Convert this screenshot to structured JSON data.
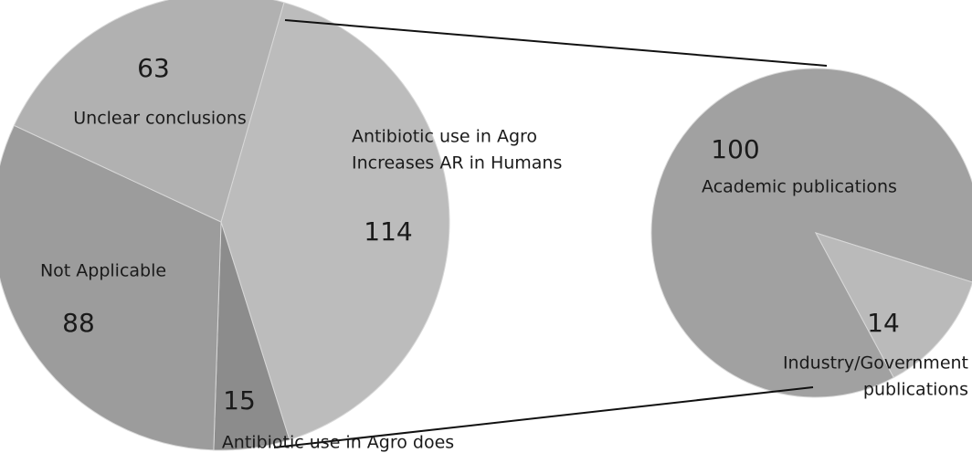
{
  "chart_data": [
    {
      "type": "pie",
      "categories": [
        [
          "Antibiotic use in Agro",
          "Increases AR in Humans"
        ],
        [
          "Antibiotic use in Agro does"
        ],
        [
          "Not Applicable"
        ],
        [
          "Unclear conclusions"
        ]
      ],
      "values": [
        114,
        15,
        88,
        63
      ],
      "colors": [
        "#bcbcbc",
        "#8c8c8c",
        "#9c9c9c",
        "#b1b1b1"
      ]
    },
    {
      "type": "pie",
      "categories": [
        [
          "Academic publications"
        ],
        [
          "Industry/Government",
          "publications"
        ]
      ],
      "values": [
        100,
        14
      ],
      "colors": [
        "#a1a1a1",
        "#bababa"
      ]
    }
  ]
}
